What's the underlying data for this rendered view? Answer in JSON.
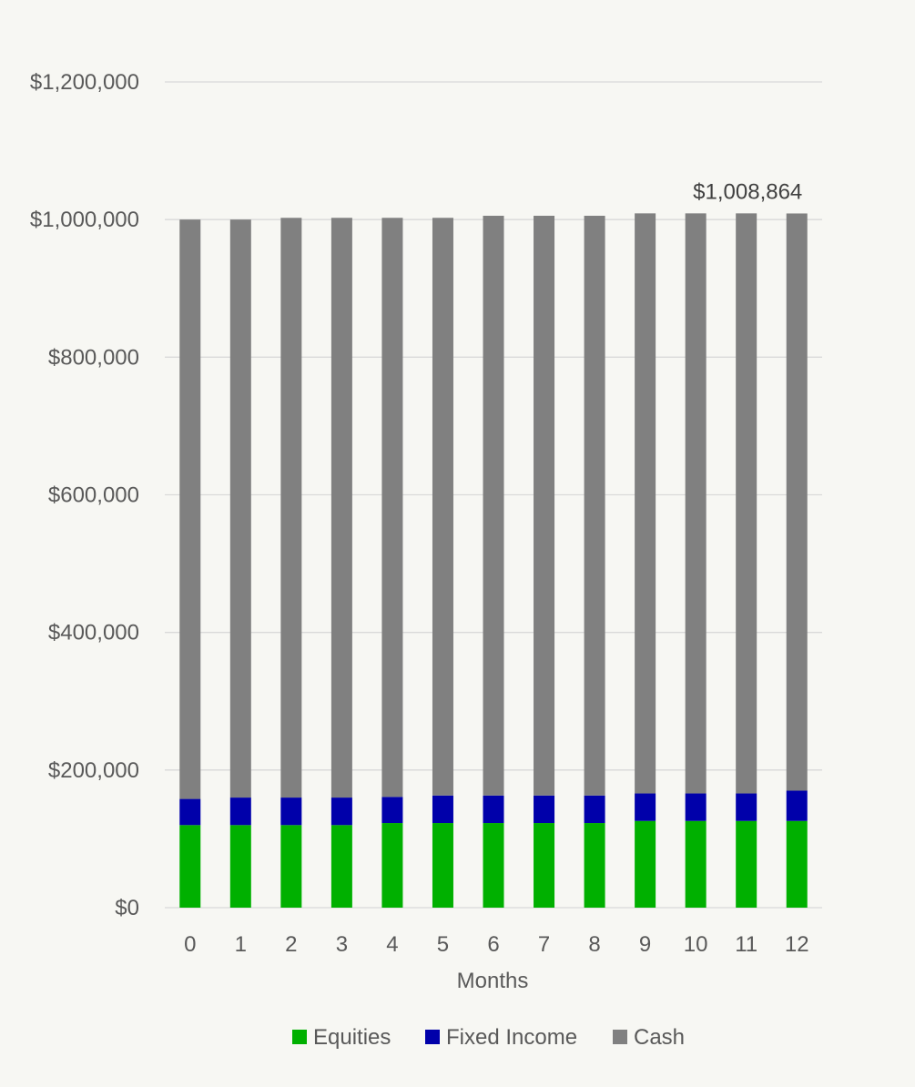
{
  "chart_data": {
    "type": "bar",
    "stacked": true,
    "xlabel": "Months",
    "ylabel": "",
    "ylim": [
      0,
      1200000
    ],
    "yticks": [
      0,
      200000,
      400000,
      600000,
      800000,
      1000000,
      1200000
    ],
    "ytick_labels": [
      "$0",
      "$200,000",
      "$400,000",
      "$600,000",
      "$800,000",
      "$1,000,000",
      "$1,200,000"
    ],
    "categories": [
      "0",
      "1",
      "2",
      "3",
      "4",
      "5",
      "6",
      "7",
      "8",
      "9",
      "10",
      "11",
      "12"
    ],
    "grid": true,
    "legend_position": "bottom",
    "series": [
      {
        "name": "Equities",
        "color": "#00b000",
        "values": [
          120000,
          120000,
          120000,
          120000,
          123000,
          123000,
          123000,
          123000,
          123000,
          126000,
          126000,
          126000,
          126000
        ]
      },
      {
        "name": "Fixed Income",
        "color": "#0000aa",
        "values": [
          38000,
          40000,
          40000,
          40000,
          38000,
          40000,
          40000,
          40000,
          40000,
          40000,
          40000,
          40000,
          44000
        ]
      },
      {
        "name": "Cash",
        "color": "#808080",
        "values": [
          842000,
          840000,
          842500,
          842500,
          841500,
          839500,
          842500,
          842500,
          842500,
          843000,
          843000,
          843000,
          838864
        ]
      }
    ],
    "annotations": [
      {
        "category": "12",
        "text": "$1,008,864"
      }
    ]
  }
}
